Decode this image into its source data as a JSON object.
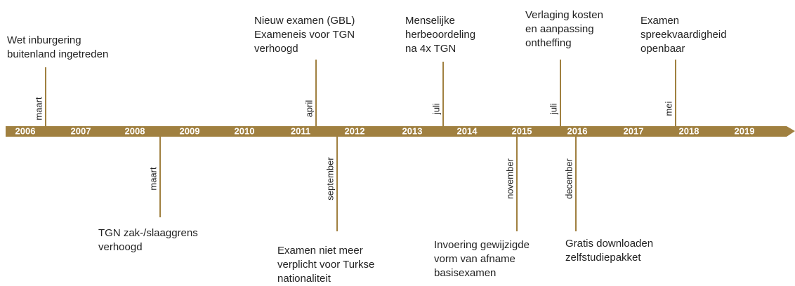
{
  "years": [
    "2006",
    "2007",
    "2008",
    "2009",
    "2010",
    "2011",
    "2012",
    "2013",
    "2014",
    "2015",
    "2016",
    "2017",
    "2018",
    "2019"
  ],
  "events": [
    {
      "month": "maart",
      "lines": [
        "Wet inburgering",
        "buitenland ingetreden"
      ]
    },
    {
      "month": "maart",
      "lines": [
        "TGN zak-/slaaggrens",
        "verhoogd"
      ]
    },
    {
      "month": "april",
      "lines": [
        "Nieuw examen (GBL)",
        "Exameneis voor TGN",
        "verhoogd"
      ]
    },
    {
      "month": "september",
      "lines": [
        "Examen niet meer",
        "verplicht voor Turkse",
        "nationaliteit"
      ]
    },
    {
      "month": "juli",
      "lines": [
        "Menselijke",
        "herbeoordeling",
        "na 4x TGN"
      ]
    },
    {
      "month": "november",
      "lines": [
        "Invoering gewijzigde",
        "vorm van afname",
        "basisexamen"
      ]
    },
    {
      "month": "juli",
      "lines": [
        "Verlaging kosten",
        "en aanpassing",
        "ontheffing"
      ]
    },
    {
      "month": "december",
      "lines": [
        "Gratis downloaden",
        "zelfstudiepakket"
      ]
    },
    {
      "month": "mei",
      "lines": [
        "Examen",
        "spreekvaardigheid",
        "openbaar"
      ]
    }
  ]
}
